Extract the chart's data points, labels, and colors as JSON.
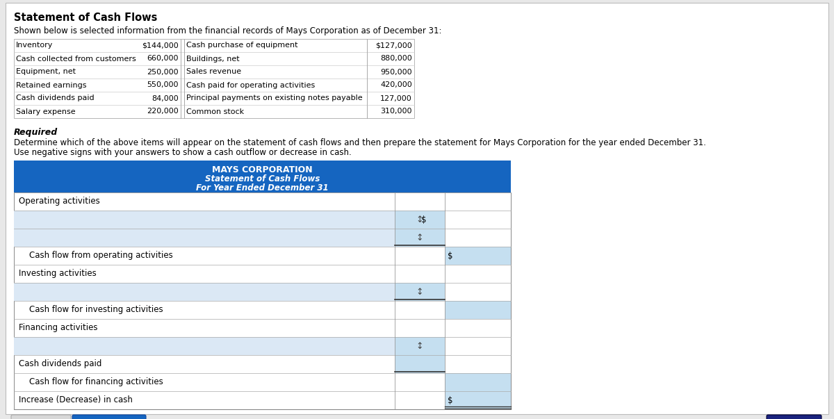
{
  "page_bg": "#e8e8e8",
  "content_bg": "#ffffff",
  "title_main": "Statement of Cash Flows",
  "subtitle": "Shown below is selected information from the financial records of Mays Corporation as of December 31:",
  "table_data": [
    [
      "Inventory",
      "$144,000",
      "Cash purchase of equipment",
      "$127,000"
    ],
    [
      "Cash collected from customers",
      "660,000",
      "Buildings, net",
      "880,000"
    ],
    [
      "Equipment, net",
      "250,000",
      "Sales revenue",
      "950,000"
    ],
    [
      "Retained earnings",
      "550,000",
      "Cash paid for operating activities",
      "420,000"
    ],
    [
      "Cash dividends paid",
      "84,000",
      "Principal payments on existing notes payable",
      "127,000"
    ],
    [
      "Salary expense",
      "220,000",
      "Common stock",
      "310,000"
    ]
  ],
  "required_label": "Required",
  "required_text1": "Determine which of the above items will appear on the statement of cash flows and then prepare the statement for Mays Corporation for the year ended December 31.",
  "required_text2": "Use negative signs with your answers to show a cash outflow or decrease in cash.",
  "corp_header_bg": "#1565c0",
  "corp_name": "MAYS CORPORATION",
  "corp_stmt": "Statement of Cash Flows",
  "corp_period": "For Year Ended December 31",
  "cf_row_defs": [
    {
      "label": "Operating activities",
      "label_bg": "white",
      "col1_bg": "white",
      "col2_bg": "white",
      "has_arrow1": false,
      "has_dollar1": false,
      "has_dollar2": false,
      "underline1": false,
      "underline2": false
    },
    {
      "label": "",
      "label_bg": "#dbe8f5",
      "col1_bg": "#c5dff0",
      "col2_bg": "white",
      "has_arrow1": true,
      "has_dollar1": true,
      "has_dollar2": false,
      "underline1": false,
      "underline2": false
    },
    {
      "label": "",
      "label_bg": "#dbe8f5",
      "col1_bg": "#c5dff0",
      "col2_bg": "white",
      "has_arrow1": true,
      "has_dollar1": false,
      "has_dollar2": false,
      "underline1": true,
      "underline2": false
    },
    {
      "label": "    Cash flow from operating activities",
      "label_bg": "white",
      "col1_bg": "white",
      "col2_bg": "#c5dff0",
      "has_arrow1": false,
      "has_dollar1": false,
      "has_dollar2": true,
      "underline1": false,
      "underline2": false
    },
    {
      "label": "Investing activities",
      "label_bg": "white",
      "col1_bg": "white",
      "col2_bg": "white",
      "has_arrow1": false,
      "has_dollar1": false,
      "has_dollar2": false,
      "underline1": false,
      "underline2": false
    },
    {
      "label": "",
      "label_bg": "#dbe8f5",
      "col1_bg": "#c5dff0",
      "col2_bg": "white",
      "has_arrow1": true,
      "has_dollar1": false,
      "has_dollar2": false,
      "underline1": true,
      "underline2": false
    },
    {
      "label": "    Cash flow for investing activities",
      "label_bg": "white",
      "col1_bg": "white",
      "col2_bg": "#c5dff0",
      "has_arrow1": false,
      "has_dollar1": false,
      "has_dollar2": false,
      "underline1": false,
      "underline2": false
    },
    {
      "label": "Financing activities",
      "label_bg": "white",
      "col1_bg": "white",
      "col2_bg": "white",
      "has_arrow1": false,
      "has_dollar1": false,
      "has_dollar2": false,
      "underline1": false,
      "underline2": false
    },
    {
      "label": "",
      "label_bg": "#dbe8f5",
      "col1_bg": "#c5dff0",
      "col2_bg": "white",
      "has_arrow1": true,
      "has_dollar1": false,
      "has_dollar2": false,
      "underline1": false,
      "underline2": false
    },
    {
      "label": "Cash dividends paid",
      "label_bg": "white",
      "col1_bg": "#c5dff0",
      "col2_bg": "white",
      "has_arrow1": false,
      "has_dollar1": false,
      "has_dollar2": false,
      "underline1": true,
      "underline2": false
    },
    {
      "label": "    Cash flow for financing activities",
      "label_bg": "white",
      "col1_bg": "white",
      "col2_bg": "#c5dff0",
      "has_arrow1": false,
      "has_dollar1": false,
      "has_dollar2": false,
      "underline1": false,
      "underline2": false
    },
    {
      "label": "Increase (Decrease) in cash",
      "label_bg": "white",
      "col1_bg": "white",
      "col2_bg": "#c5dff0",
      "has_arrow1": false,
      "has_dollar1": false,
      "has_dollar2": true,
      "underline1": false,
      "underline2": true
    }
  ]
}
